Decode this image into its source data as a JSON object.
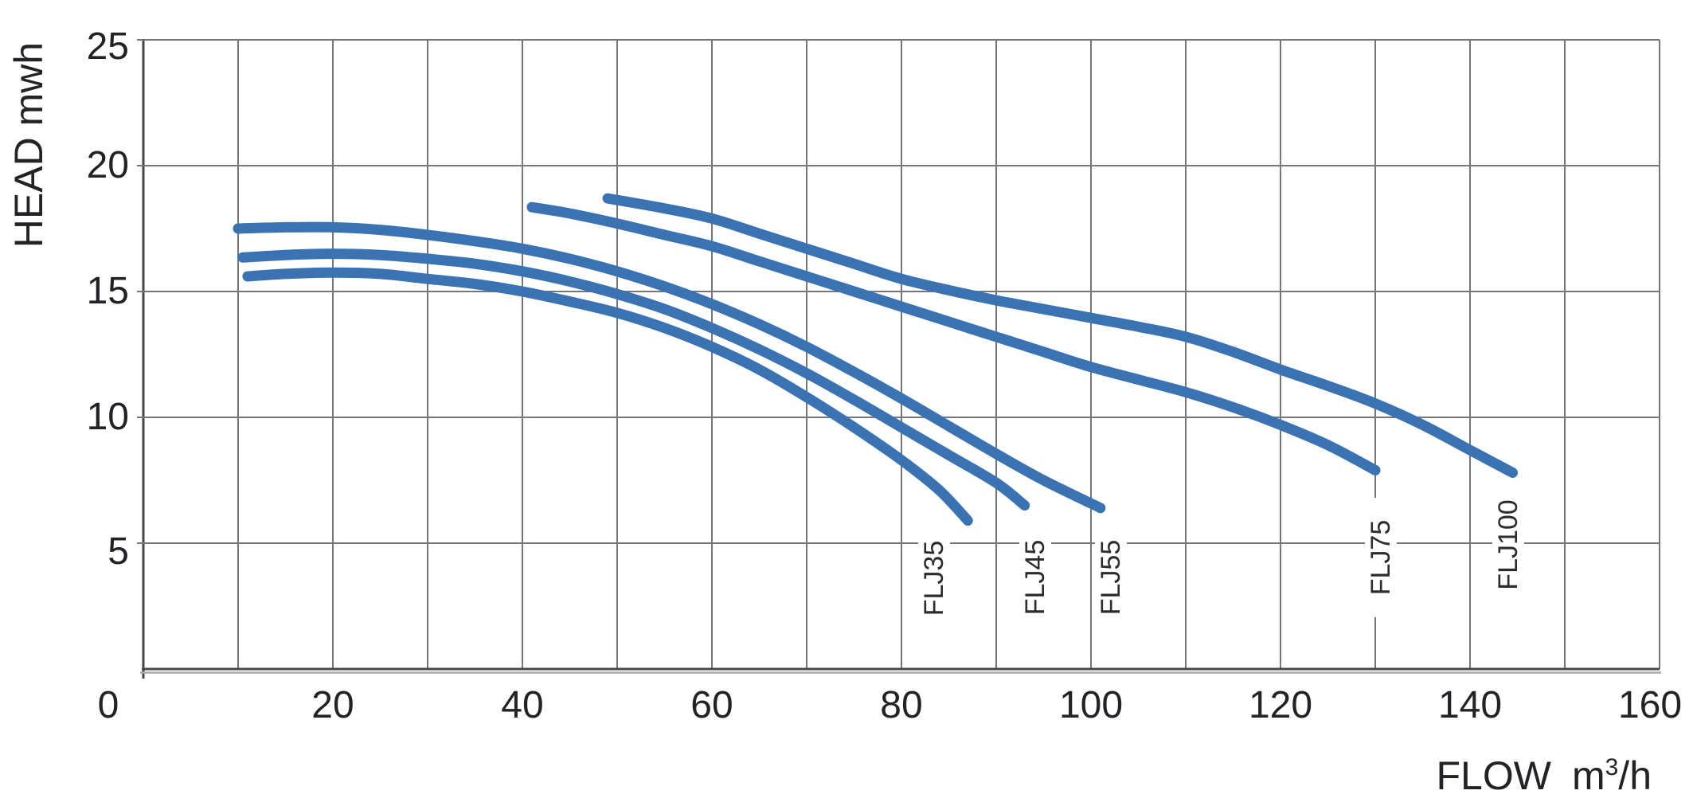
{
  "axis": {
    "y_title": "HEAD mwh",
    "x_title": "FLOW",
    "x_unit_base": "m",
    "x_unit_sup": "3",
    "x_unit_tail": "/h"
  },
  "chart_data": {
    "type": "line",
    "xlabel": "FLOW m3/h",
    "ylabel": "HEAD mwh",
    "xlim": [
      0,
      160
    ],
    "ylim": [
      0,
      25
    ],
    "x_ticks": [
      0,
      20,
      40,
      60,
      80,
      100,
      120,
      140,
      160
    ],
    "y_ticks": [
      5,
      10,
      15,
      20,
      25
    ],
    "x_grid_step": 10,
    "y_grid_step": 5,
    "grid": true,
    "legend_position": "inline-rotated-labels",
    "colors": {
      "curve": "#3a72b2",
      "grid": "#767678",
      "axis": "#47474a",
      "axis_shadow": "#a9a9ab",
      "text": "#232327"
    },
    "series": [
      {
        "name": "FLJ35",
        "points": [
          [
            11,
            15.6
          ],
          [
            15,
            15.7
          ],
          [
            20,
            15.75
          ],
          [
            25,
            15.7
          ],
          [
            30,
            15.5
          ],
          [
            35,
            15.3
          ],
          [
            40,
            15.0
          ],
          [
            45,
            14.6
          ],
          [
            50,
            14.15
          ],
          [
            55,
            13.55
          ],
          [
            60,
            12.8
          ],
          [
            65,
            11.9
          ],
          [
            70,
            10.8
          ],
          [
            75,
            9.6
          ],
          [
            80,
            8.3
          ],
          [
            84,
            7.1
          ],
          [
            87,
            5.9
          ]
        ]
      },
      {
        "name": "FLJ45",
        "points": [
          [
            10.5,
            16.35
          ],
          [
            15,
            16.45
          ],
          [
            20,
            16.5
          ],
          [
            25,
            16.45
          ],
          [
            30,
            16.3
          ],
          [
            35,
            16.1
          ],
          [
            40,
            15.8
          ],
          [
            45,
            15.4
          ],
          [
            50,
            14.9
          ],
          [
            55,
            14.3
          ],
          [
            60,
            13.55
          ],
          [
            65,
            12.7
          ],
          [
            70,
            11.75
          ],
          [
            75,
            10.7
          ],
          [
            80,
            9.6
          ],
          [
            85,
            8.5
          ],
          [
            90,
            7.4
          ],
          [
            93,
            6.5
          ]
        ]
      },
      {
        "name": "FLJ55",
        "points": [
          [
            10,
            17.5
          ],
          [
            15,
            17.55
          ],
          [
            20,
            17.55
          ],
          [
            25,
            17.45
          ],
          [
            30,
            17.25
          ],
          [
            35,
            17.0
          ],
          [
            40,
            16.7
          ],
          [
            45,
            16.3
          ],
          [
            50,
            15.8
          ],
          [
            55,
            15.2
          ],
          [
            60,
            14.5
          ],
          [
            65,
            13.7
          ],
          [
            70,
            12.8
          ],
          [
            75,
            11.8
          ],
          [
            80,
            10.75
          ],
          [
            85,
            9.65
          ],
          [
            90,
            8.55
          ],
          [
            95,
            7.5
          ],
          [
            101,
            6.4
          ]
        ]
      },
      {
        "name": "FLJ75",
        "points": [
          [
            41,
            18.35
          ],
          [
            45,
            18.1
          ],
          [
            50,
            17.7
          ],
          [
            55,
            17.25
          ],
          [
            60,
            16.8
          ],
          [
            65,
            16.2
          ],
          [
            70,
            15.6
          ],
          [
            75,
            15.0
          ],
          [
            80,
            14.4
          ],
          [
            85,
            13.8
          ],
          [
            90,
            13.2
          ],
          [
            95,
            12.6
          ],
          [
            100,
            12.0
          ],
          [
            105,
            11.5
          ],
          [
            110,
            11.0
          ],
          [
            115,
            10.4
          ],
          [
            120,
            9.7
          ],
          [
            125,
            8.9
          ],
          [
            130,
            7.9
          ]
        ]
      },
      {
        "name": "FLJ100",
        "points": [
          [
            49,
            18.7
          ],
          [
            55,
            18.3
          ],
          [
            60,
            17.9
          ],
          [
            65,
            17.3
          ],
          [
            70,
            16.7
          ],
          [
            75,
            16.1
          ],
          [
            80,
            15.5
          ],
          [
            85,
            15.05
          ],
          [
            90,
            14.65
          ],
          [
            95,
            14.3
          ],
          [
            100,
            13.95
          ],
          [
            105,
            13.6
          ],
          [
            110,
            13.2
          ],
          [
            115,
            12.6
          ],
          [
            120,
            11.9
          ],
          [
            125,
            11.25
          ],
          [
            130,
            10.55
          ],
          [
            135,
            9.7
          ],
          [
            140,
            8.7
          ],
          [
            144.5,
            7.8
          ]
        ]
      }
    ]
  }
}
